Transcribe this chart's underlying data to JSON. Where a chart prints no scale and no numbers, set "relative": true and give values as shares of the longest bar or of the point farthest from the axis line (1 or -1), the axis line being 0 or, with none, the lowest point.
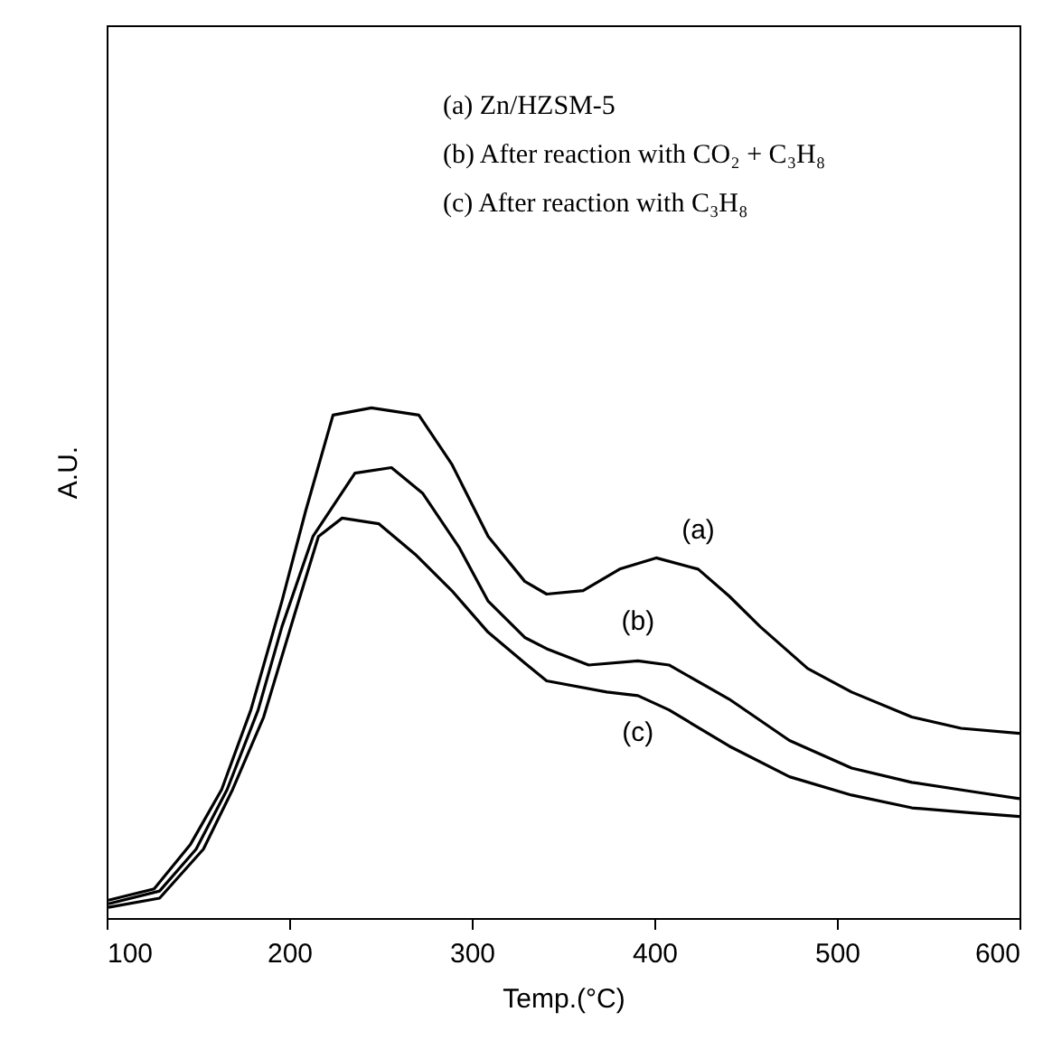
{
  "chart_data": {
    "type": "line",
    "relative": true,
    "xlabel": "Temp.(°C)",
    "ylabel": "A.U.",
    "xlim": [
      100,
      600
    ],
    "xticks": [
      100,
      200,
      300,
      400,
      500,
      600
    ],
    "grid": false,
    "line_style": "solid",
    "marker": "none",
    "annotations": [
      "(a) Zn/HZSM-5",
      "(b) After reaction with CO₂ + C₃H₈",
      "(c) After reaction with C₃H₈"
    ],
    "series": [
      {
        "name": "(a)",
        "color": "#000000",
        "x": [
          101,
          126,
          146,
          163,
          179,
          196,
          209,
          224,
          245,
          271,
          289,
          309,
          329,
          341,
          361,
          381,
          401,
          424,
          441,
          458,
          484,
          508,
          541,
          568,
          600
        ],
        "values": [
          0.035,
          0.057,
          0.145,
          0.252,
          0.408,
          0.621,
          0.798,
          0.986,
          1,
          0.986,
          0.89,
          0.748,
          0.66,
          0.635,
          0.642,
          0.684,
          0.706,
          0.684,
          0.631,
          0.571,
          0.489,
          0.443,
          0.394,
          0.372,
          0.362
        ]
      },
      {
        "name": "(b)",
        "color": "#000000",
        "x": [
          101,
          129,
          149,
          166,
          183,
          196,
          213,
          236,
          256,
          273,
          293,
          309,
          329,
          341,
          364,
          391,
          408,
          441,
          474,
          508,
          541,
          574,
          600
        ],
        "values": [
          0.028,
          0.053,
          0.135,
          0.252,
          0.408,
          0.571,
          0.748,
          0.872,
          0.883,
          0.833,
          0.727,
          0.621,
          0.55,
          0.528,
          0.496,
          0.504,
          0.496,
          0.429,
          0.348,
          0.294,
          0.266,
          0.248,
          0.234
        ]
      },
      {
        "name": "(c)",
        "color": "#000000",
        "x": [
          101,
          129,
          153,
          169,
          186,
          203,
          216,
          229,
          249,
          269,
          289,
          309,
          329,
          341,
          374,
          391,
          408,
          441,
          474,
          508,
          541,
          574,
          600
        ],
        "values": [
          0.021,
          0.039,
          0.135,
          0.252,
          0.394,
          0.596,
          0.748,
          0.784,
          0.773,
          0.713,
          0.642,
          0.56,
          0.5,
          0.465,
          0.443,
          0.436,
          0.408,
          0.337,
          0.277,
          0.241,
          0.216,
          0.206,
          0.199
        ]
      }
    ]
  }
}
